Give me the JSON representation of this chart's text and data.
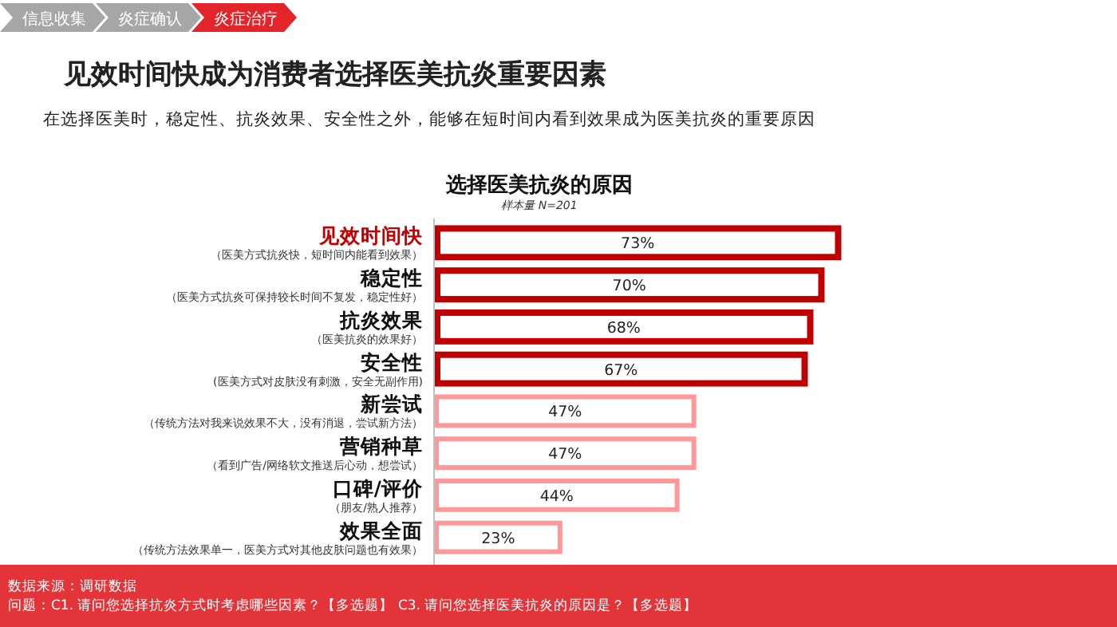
{
  "chart_data": {
    "type": "bar",
    "orientation": "horizontal",
    "title": "选择医美抗炎的原因",
    "subtitle": "样本量 N=201",
    "categories": [
      "见效时间快",
      "稳定性",
      "抗炎效果",
      "安全性",
      "新尝试",
      "营销种草",
      "口碑/评价",
      "效果全面"
    ],
    "values": [
      73,
      70,
      68,
      67,
      47,
      47,
      44,
      23
    ],
    "colors": [
      "#c00000",
      "#c00000",
      "#c00000",
      "#c00000",
      "#ff9999",
      "#ff9999",
      "#ff9999",
      "#ff9999"
    ],
    "value_labels": [
      "73%",
      "70%",
      "68%",
      "67%",
      "47%",
      "47%",
      "44%",
      "23%"
    ],
    "annotations": [
      "（医美方式抗炎快，短时间内能看到效果）",
      "（医美方式抗炎可保持较长时间不复发，稳定性好）",
      "（医美抗炎的效果好）",
      "(医美方式对皮肤没有刺激，安全无副作用)",
      "（传统方法对我来说效果不大，没有消退，尝试新方法）",
      "（看到广告/网络软文推送后心动，想尝试）",
      "（朋友/熟人推荐）",
      "（传统方法效果单一，医美方式对其他皮肤问题也有效果）",
      "信息收集",
      "炎症确认",
      "炎症治疗",
      "见效时间快成为消费者选择医美抗炎重要因素",
      "在选择医美时，稳定性、抗炎效果、安全性之外，能够在短时间内看到效果成为医美抗炎的重要原因",
      "数据来源：调研数据",
      "问题：C1. 请问您选择抗炎方式时考虑哪些因素？【多选题】 C3. 请问您选择医美抗炎的原因是？【多选题】"
    ]
  }
}
